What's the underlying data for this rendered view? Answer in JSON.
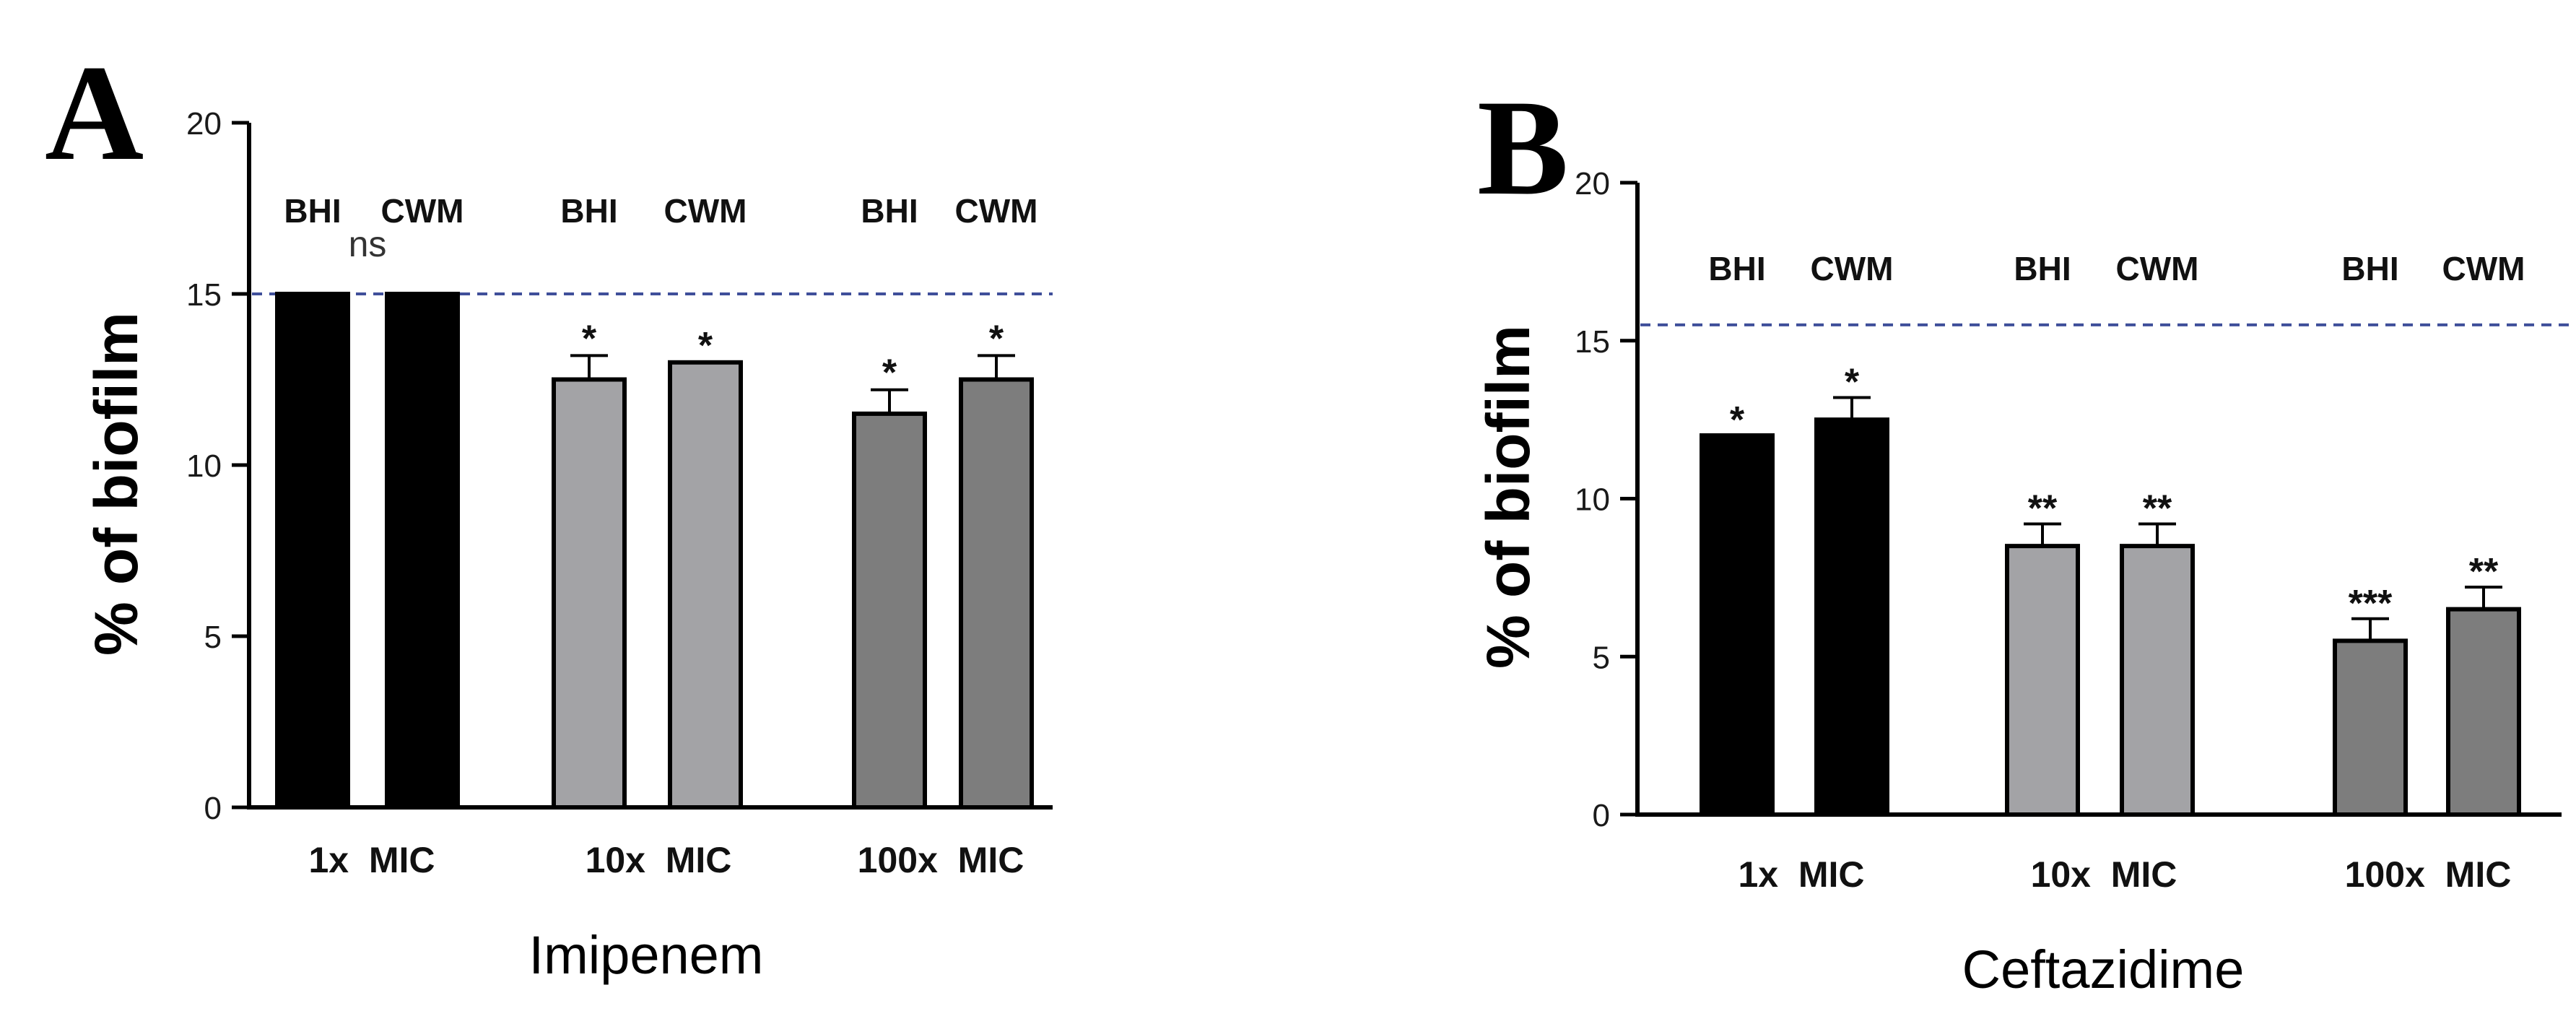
{
  "chart_data": [
    {
      "panel": "A",
      "type": "bar",
      "xlabel": "Imipenem",
      "ylabel": "% of biofilm",
      "ylim": [
        0,
        20
      ],
      "yticks": [
        0,
        5,
        10,
        15,
        20
      ],
      "reference_line": 15,
      "groups": [
        "1x  MIC",
        "10x  MIC",
        "100x  MIC"
      ],
      "conditions": [
        "BHI",
        "CWM"
      ],
      "values": [
        [
          15,
          15
        ],
        [
          12.5,
          13
        ],
        [
          11.5,
          12.5
        ]
      ],
      "errors": [
        [
          0,
          0
        ],
        [
          0.7,
          0
        ],
        [
          0.7,
          0.7
        ]
      ],
      "significance": [
        [
          "",
          ""
        ],
        [
          "*",
          "*"
        ],
        [
          "*",
          "*"
        ]
      ],
      "group_annotation": [
        "ns",
        "",
        ""
      ],
      "bar_colors": [
        "#000000",
        "#a3a3a6",
        "#7d7d7d"
      ]
    },
    {
      "panel": "B",
      "type": "bar",
      "xlabel": "Ceftazidime",
      "ylabel": "% of biofilm",
      "ylim": [
        0,
        20
      ],
      "yticks": [
        0,
        5,
        10,
        15,
        20
      ],
      "reference_line": 15.5,
      "groups": [
        "1x  MIC",
        "10x  MIC",
        "100x  MIC"
      ],
      "conditions": [
        "BHI",
        "CWM"
      ],
      "values": [
        [
          12,
          12.5
        ],
        [
          8.5,
          8.5
        ],
        [
          5.5,
          6.5
        ]
      ],
      "errors": [
        [
          0,
          0.7
        ],
        [
          0.7,
          0.7
        ],
        [
          0.7,
          0.7
        ]
      ],
      "significance": [
        [
          "*",
          "*"
        ],
        [
          "**",
          "**"
        ],
        [
          "***",
          "**"
        ]
      ],
      "group_annotation": [
        "",
        "",
        ""
      ],
      "bar_colors": [
        "#000000",
        "#a3a3a6",
        "#7d7d7d"
      ]
    }
  ]
}
